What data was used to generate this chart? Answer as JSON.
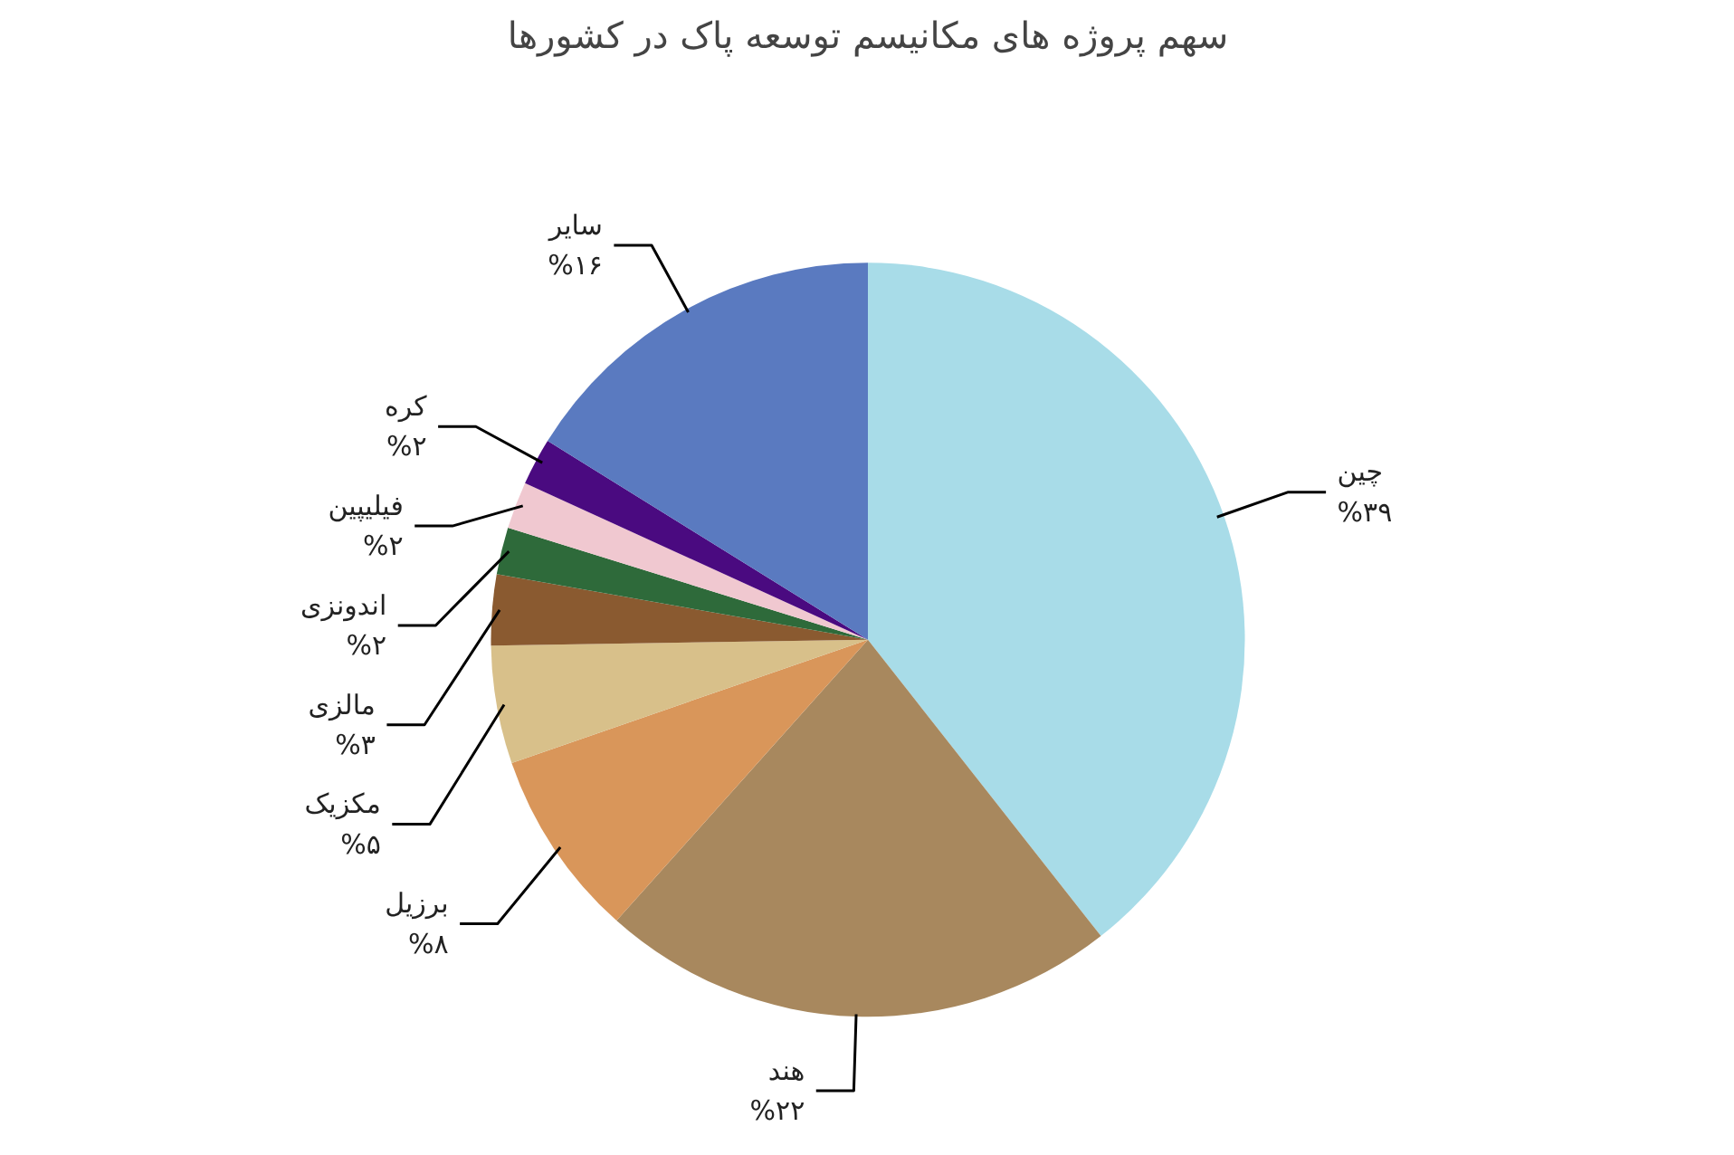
{
  "chart_data": {
    "type": "pie",
    "title": "سهم پروژه های مکانیسم توسعه پاک در کشورها",
    "categories": [
      "چین",
      "هند",
      "برزیل",
      "مکزیک",
      "مالزی",
      "اندونزی",
      "فیلیپین",
      "کره",
      "سایر"
    ],
    "values": [
      39,
      22,
      8,
      5,
      3,
      2,
      2,
      2,
      16
    ],
    "value_labels": [
      "%۳۹",
      "%۲۲",
      "%۸",
      "%۵",
      "%۳",
      "%۲",
      "%۲",
      "%۲",
      "%۱۶"
    ],
    "colors": [
      "#a8dce8",
      "#a8885e",
      "#d9965a",
      "#d8c08a",
      "#8a5a30",
      "#2e6a3a",
      "#f0c8d0",
      "#4a0a80",
      "#5a7ac0"
    ]
  }
}
